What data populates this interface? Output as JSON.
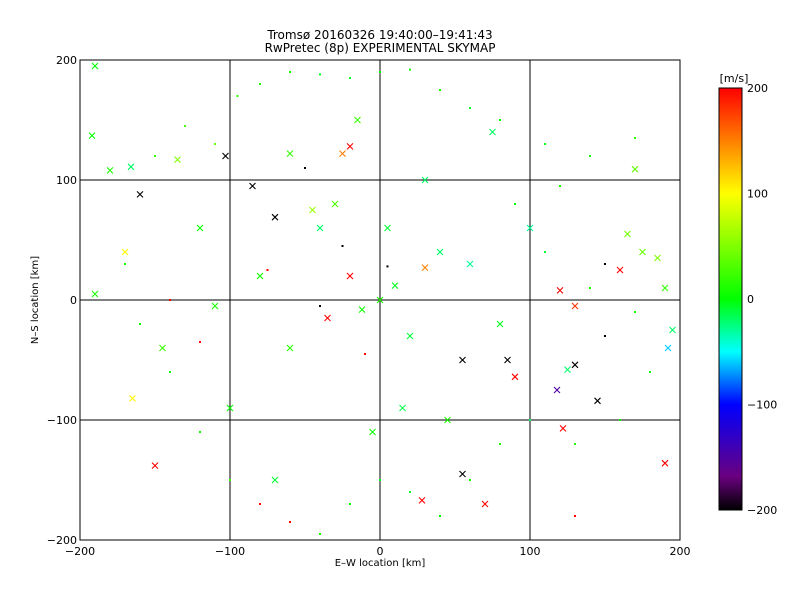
{
  "chart_data": {
    "type": "scatter",
    "title": "Tromsø 20160326 19:40:00–19:41:43",
    "subtitle": "RwPretec (8p) EXPERIMENTAL SKYMAP",
    "xlabel": "E–W location [km]",
    "ylabel": "N–S location [km]",
    "xlim": [
      -200,
      200
    ],
    "ylim": [
      -200,
      200
    ],
    "xticks": [
      "−200",
      "−100",
      "0",
      "100",
      "200"
    ],
    "yticks": [
      "−200",
      "−100",
      "0",
      "100",
      "200"
    ],
    "grid": true,
    "colorbar": {
      "label": "[m/s]",
      "range": [
        -200,
        200
      ],
      "ticks": [
        "200",
        "100",
        "0",
        "−100",
        "−200"
      ],
      "colormap": [
        "#000000",
        "#6a0080",
        "#0000ff",
        "#00ffff",
        "#00ff00",
        "#ffff00",
        "#ff0000"
      ]
    },
    "marker_types": [
      "dot",
      "cross"
    ],
    "series": [
      {
        "points": [
          [
            -190,
            195,
            0,
            "x"
          ],
          [
            -192,
            137,
            0,
            "x"
          ],
          [
            -180,
            108,
            10,
            "x"
          ],
          [
            -166,
            111,
            -20,
            "x"
          ],
          [
            -135,
            117,
            50,
            "x"
          ],
          [
            -103,
            120,
            -200,
            "x"
          ],
          [
            -60,
            122,
            20,
            "x"
          ],
          [
            -20,
            128,
            200,
            "x"
          ],
          [
            -25,
            122,
            150,
            "x"
          ],
          [
            170,
            109,
            40,
            "x"
          ],
          [
            165,
            55,
            45,
            "x"
          ],
          [
            175,
            40,
            40,
            "x"
          ],
          [
            185,
            35,
            50,
            "x"
          ],
          [
            160,
            25,
            200,
            "x"
          ],
          [
            190,
            10,
            20,
            "x"
          ],
          [
            195,
            -25,
            -20,
            "x"
          ],
          [
            192,
            -40,
            -60,
            "x"
          ],
          [
            -190,
            5,
            10,
            "x"
          ],
          [
            -170,
            40,
            100,
            "x"
          ],
          [
            -160,
            88,
            -200,
            "x"
          ],
          [
            -85,
            95,
            -200,
            "x"
          ],
          [
            -70,
            69,
            -200,
            "x"
          ],
          [
            -40,
            60,
            -20,
            "x"
          ],
          [
            -20,
            20,
            200,
            "x"
          ],
          [
            -35,
            -15,
            200,
            "x"
          ],
          [
            30,
            27,
            150,
            "x"
          ],
          [
            40,
            40,
            -20,
            "x"
          ],
          [
            55,
            -50,
            -200,
            "x"
          ],
          [
            85,
            -50,
            -200,
            "x"
          ],
          [
            90,
            -64,
            200,
            "x"
          ],
          [
            118,
            -75,
            -150,
            "x"
          ],
          [
            125,
            -58,
            -20,
            "x"
          ],
          [
            130,
            -54,
            -200,
            "x"
          ],
          [
            145,
            -84,
            -200,
            "x"
          ],
          [
            122,
            -107,
            200,
            "x"
          ],
          [
            120,
            8,
            200,
            "x"
          ],
          [
            130,
            -5,
            180,
            "x"
          ],
          [
            55,
            -145,
            -200,
            "x"
          ],
          [
            70,
            -170,
            200,
            "x"
          ],
          [
            28,
            -167,
            200,
            "x"
          ],
          [
            -150,
            -138,
            200,
            "x"
          ],
          [
            -165,
            -82,
            100,
            "x"
          ],
          [
            -145,
            -40,
            20,
            "x"
          ],
          [
            -110,
            -5,
            10,
            "x"
          ],
          [
            -70,
            -150,
            -10,
            "x"
          ],
          [
            190,
            -136,
            200,
            "x"
          ],
          [
            0,
            0,
            10,
            "x"
          ],
          [
            10,
            12,
            -5,
            "x"
          ],
          [
            -12,
            -8,
            5,
            "x"
          ],
          [
            20,
            -30,
            -10,
            "x"
          ],
          [
            -45,
            75,
            60,
            "x"
          ],
          [
            -30,
            80,
            30,
            "x"
          ],
          [
            30,
            100,
            -20,
            "x"
          ],
          [
            60,
            30,
            -30,
            "x"
          ],
          [
            -60,
            -40,
            15,
            "x"
          ],
          [
            -5,
            -110,
            5,
            "x"
          ],
          [
            15,
            -90,
            -15,
            "x"
          ],
          [
            45,
            -100,
            10,
            "x"
          ],
          [
            80,
            -20,
            -5,
            "x"
          ],
          [
            -80,
            20,
            5,
            "x"
          ],
          [
            -100,
            -90,
            0,
            "x"
          ],
          [
            100,
            60,
            -30,
            "x"
          ],
          [
            -120,
            60,
            5,
            "x"
          ],
          [
            5,
            60,
            -10,
            "x"
          ],
          [
            -15,
            150,
            20,
            "x"
          ],
          [
            75,
            140,
            -20,
            "x"
          ],
          [
            -170,
            30,
            5,
            "."
          ],
          [
            -150,
            120,
            20,
            "."
          ],
          [
            -130,
            145,
            30,
            "."
          ],
          [
            -110,
            130,
            40,
            "."
          ],
          [
            -95,
            170,
            20,
            "."
          ],
          [
            -80,
            180,
            10,
            "."
          ],
          [
            -60,
            190,
            5,
            "."
          ],
          [
            -40,
            188,
            -5,
            "."
          ],
          [
            -20,
            185,
            -10,
            "."
          ],
          [
            0,
            190,
            0,
            "."
          ],
          [
            20,
            192,
            5,
            "."
          ],
          [
            40,
            175,
            10,
            "."
          ],
          [
            60,
            160,
            -10,
            "."
          ],
          [
            80,
            150,
            0,
            "."
          ],
          [
            110,
            130,
            -5,
            "."
          ],
          [
            140,
            120,
            10,
            "."
          ],
          [
            170,
            135,
            20,
            "."
          ],
          [
            -160,
            -20,
            0,
            "."
          ],
          [
            -140,
            -60,
            5,
            "."
          ],
          [
            -120,
            -110,
            10,
            "."
          ],
          [
            -100,
            -150,
            20,
            "."
          ],
          [
            -80,
            -170,
            200,
            "."
          ],
          [
            -60,
            -185,
            200,
            "."
          ],
          [
            -40,
            -195,
            10,
            "."
          ],
          [
            -20,
            -170,
            0,
            "."
          ],
          [
            0,
            -150,
            -5,
            "."
          ],
          [
            20,
            -160,
            -10,
            "."
          ],
          [
            40,
            -180,
            0,
            "."
          ],
          [
            60,
            -150,
            5,
            "."
          ],
          [
            80,
            -120,
            10,
            "."
          ],
          [
            100,
            -100,
            -20,
            "."
          ],
          [
            130,
            -120,
            15,
            "."
          ],
          [
            160,
            -100,
            0,
            "."
          ],
          [
            180,
            -60,
            5,
            "."
          ],
          [
            150,
            -30,
            -200,
            "."
          ],
          [
            170,
            -10,
            5,
            "."
          ],
          [
            140,
            10,
            10,
            "."
          ],
          [
            110,
            40,
            -10,
            "."
          ],
          [
            90,
            80,
            0,
            "."
          ],
          [
            120,
            95,
            10,
            "."
          ],
          [
            -50,
            110,
            -200,
            "."
          ],
          [
            -25,
            45,
            -200,
            "."
          ],
          [
            5,
            28,
            -200,
            "."
          ],
          [
            -40,
            -5,
            -200,
            "."
          ],
          [
            150,
            30,
            -200,
            "."
          ],
          [
            -75,
            25,
            200,
            "."
          ],
          [
            -140,
            0,
            200,
            "."
          ],
          [
            -120,
            -35,
            200,
            "."
          ],
          [
            130,
            -180,
            200,
            "."
          ],
          [
            -10,
            -45,
            200,
            "."
          ]
        ]
      }
    ]
  }
}
